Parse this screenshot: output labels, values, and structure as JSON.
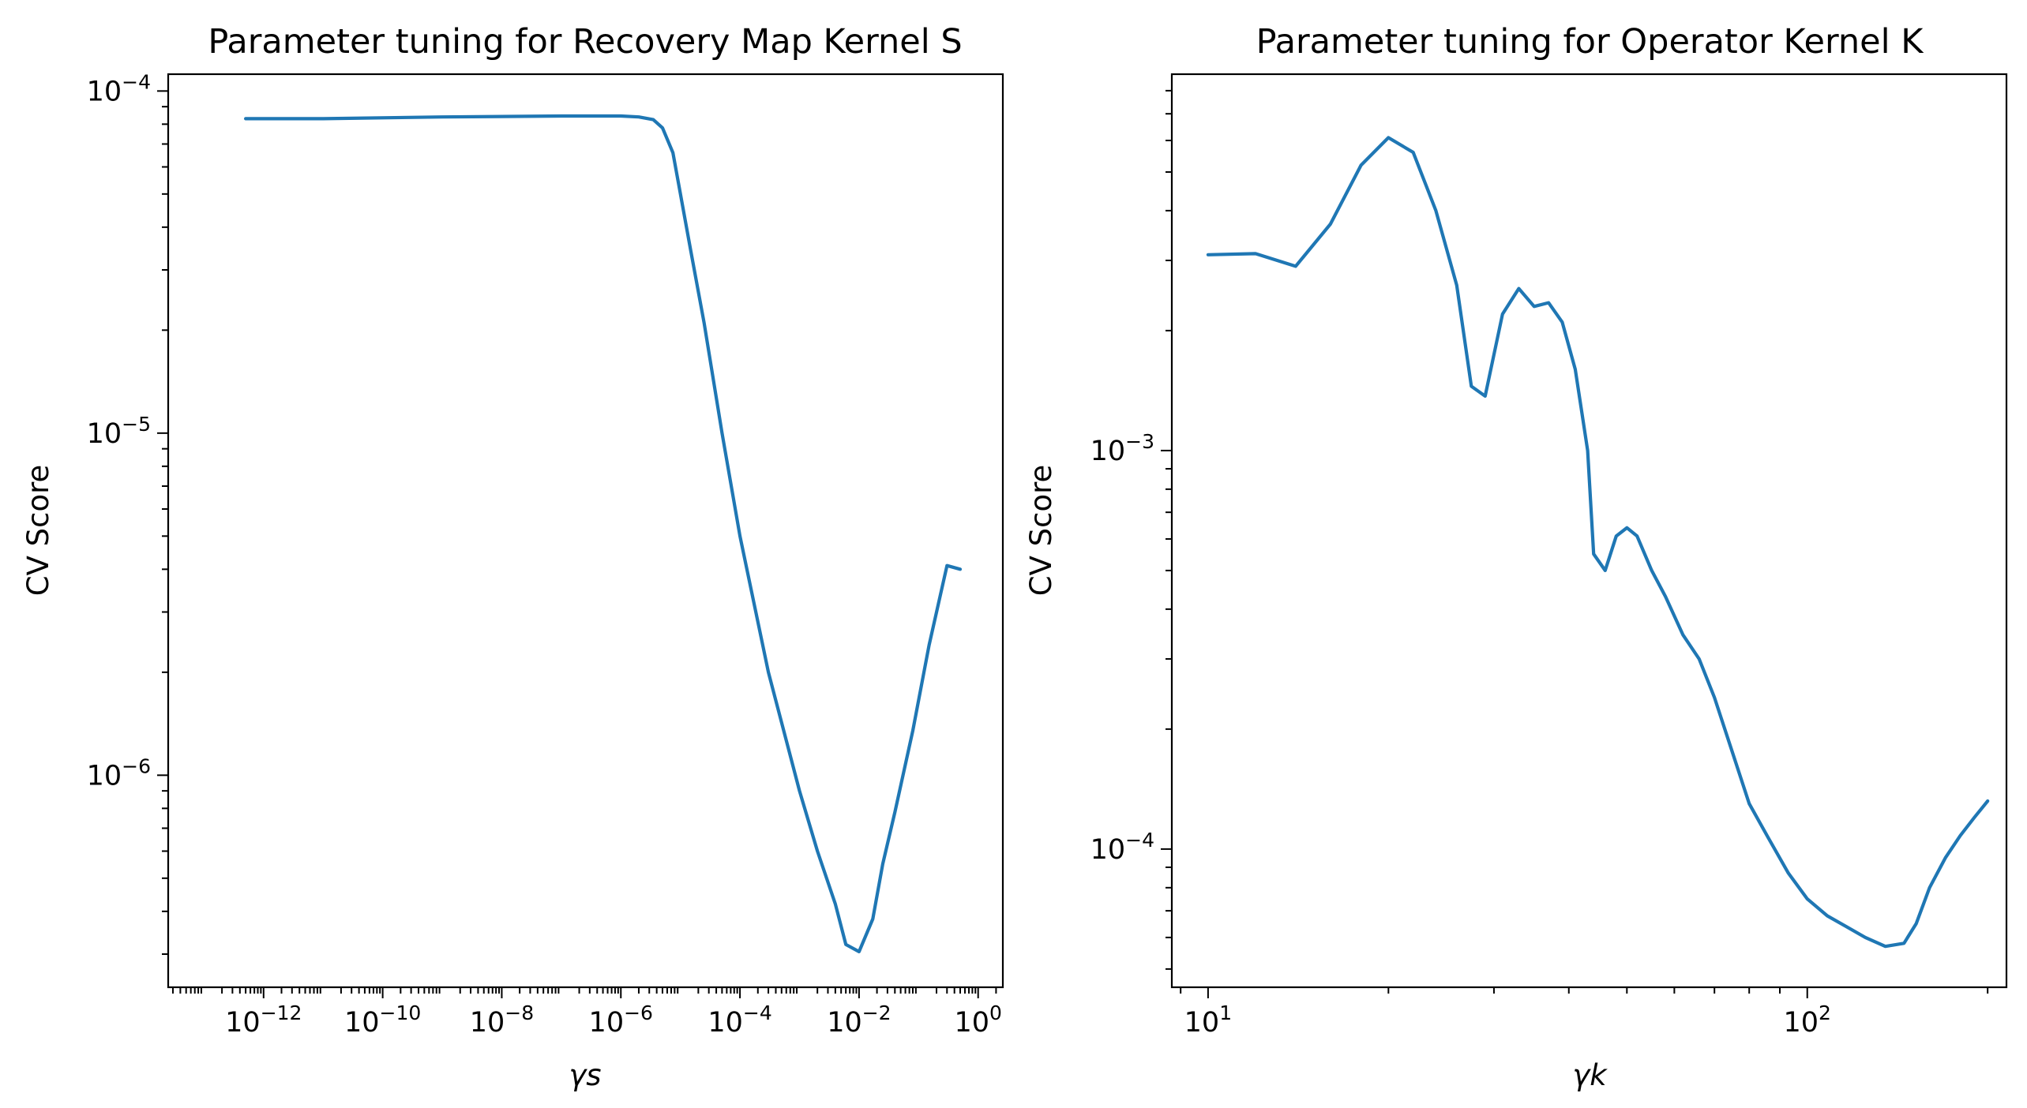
{
  "colors": {
    "line": "#1f77b4"
  },
  "chart_data": [
    {
      "type": "line",
      "title": "Parameter tuning for Recovery Map Kernel S",
      "xlabel": "γs",
      "ylabel": "CV Score",
      "xscale": "log",
      "yscale": "log",
      "xlim": [
        2.5e-14,
        2.6
      ],
      "ylim": [
        2.4e-07,
        0.000112
      ],
      "xticks": [
        {
          "value": 1e-12,
          "base": "10",
          "exp": "−12"
        },
        {
          "value": 1e-10,
          "base": "10",
          "exp": "−10"
        },
        {
          "value": 1e-08,
          "base": "10",
          "exp": "−8"
        },
        {
          "value": 1e-06,
          "base": "10",
          "exp": "−6"
        },
        {
          "value": 0.0001,
          "base": "10",
          "exp": "−4"
        },
        {
          "value": 0.01,
          "base": "10",
          "exp": "−2"
        },
        {
          "value": 1,
          "base": "10",
          "exp": "0"
        }
      ],
      "yticks": [
        {
          "value": 1e-06,
          "base": "10",
          "exp": "−6"
        },
        {
          "value": 1e-05,
          "base": "10",
          "exp": "−5"
        },
        {
          "value": 0.0001,
          "base": "10",
          "exp": "−4"
        }
      ],
      "series": [
        {
          "x": [
            5e-13,
            1e-11,
            1e-09,
            1e-07,
            1e-06,
            2e-06,
            3.5e-06,
            5e-06,
            7.5e-06,
            1e-05,
            1.5e-05,
            2.5e-05,
            5e-05,
            0.0001,
            0.0003,
            0.001,
            0.002,
            0.004,
            0.006,
            0.01,
            0.017,
            0.025,
            0.04,
            0.08,
            0.15,
            0.3,
            0.5
          ],
          "y": [
            8.3e-05,
            8.3e-05,
            8.4e-05,
            8.45e-05,
            8.45e-05,
            8.4e-05,
            8.25e-05,
            7.8e-05,
            6.6e-05,
            5e-05,
            3.4e-05,
            2.1e-05,
            1e-05,
            5e-06,
            2e-06,
            9e-07,
            6e-07,
            4.2e-07,
            3.2e-07,
            3.05e-07,
            3.8e-07,
            5.5e-07,
            7.8e-07,
            1.35e-06,
            2.4e-06,
            4.1e-06,
            4e-06
          ]
        }
      ]
    },
    {
      "type": "line",
      "title": "Parameter tuning for Operator Kernel K",
      "xlabel": "γk",
      "ylabel": "CV Score",
      "xscale": "log",
      "yscale": "log",
      "xlim": [
        8.7,
        215
      ],
      "ylim": [
        4.5e-05,
        0.0088
      ],
      "xticks": [
        {
          "value": 10,
          "base": "10",
          "exp": "1"
        },
        {
          "value": 100,
          "base": "10",
          "exp": "2"
        }
      ],
      "yticks": [
        {
          "value": 0.0001,
          "base": "10",
          "exp": "−4"
        },
        {
          "value": 0.001,
          "base": "10",
          "exp": "−3"
        }
      ],
      "series": [
        {
          "x": [
            10,
            12,
            14,
            16,
            18,
            20,
            22,
            24,
            26,
            27.5,
            29,
            31,
            33,
            35,
            37,
            39,
            41,
            43,
            44,
            46,
            48,
            50,
            52,
            55,
            58,
            62,
            66,
            70,
            75,
            80,
            86,
            93,
            100,
            108,
            116,
            125,
            135,
            145,
            152,
            160,
            170,
            180,
            190,
            200
          ],
          "y": [
            0.0031,
            0.00312,
            0.0029,
            0.0037,
            0.0052,
            0.0061,
            0.0056,
            0.004,
            0.0026,
            0.00145,
            0.00137,
            0.0022,
            0.00255,
            0.0023,
            0.00235,
            0.0021,
            0.0016,
            0.001,
            0.00055,
            0.0005,
            0.00061,
            0.00064,
            0.00061,
            0.0005,
            0.00043,
            0.000345,
            0.0003,
            0.00024,
            0.000175,
            0.00013,
            0.000107,
            8.7e-05,
            7.5e-05,
            6.8e-05,
            6.4e-05,
            6e-05,
            5.7e-05,
            5.8e-05,
            6.5e-05,
            8e-05,
            9.5e-05,
            0.000108,
            0.00012,
            0.000132
          ]
        }
      ]
    }
  ]
}
